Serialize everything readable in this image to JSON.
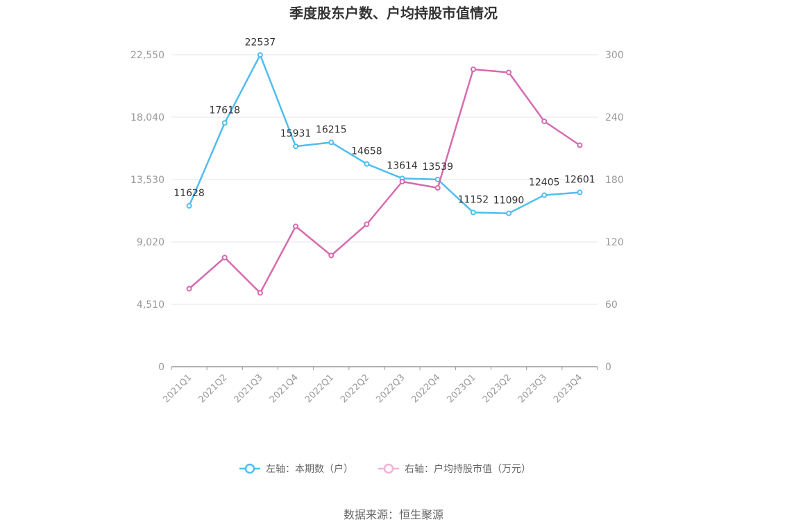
{
  "chart_data": {
    "type": "line",
    "title": "季度股东户数、户均持股市值情况",
    "categories": [
      "2021Q1",
      "2021Q2",
      "2021Q3",
      "2021Q4",
      "2022Q1",
      "2022Q2",
      "2022Q3",
      "2022Q4",
      "2023Q1",
      "2023Q2",
      "2023Q3",
      "2023Q4"
    ],
    "left_axis": {
      "ticks": [
        "0",
        "4,510",
        "9,020",
        "13,530",
        "18,040",
        "22,550"
      ],
      "range": [
        0,
        22550
      ]
    },
    "right_axis": {
      "ticks": [
        "0",
        "60",
        "120",
        "180",
        "240",
        "300"
      ],
      "range": [
        0,
        300
      ]
    },
    "series": [
      {
        "name": "左轴：本期数（户）",
        "axis": "left",
        "color": "#4fbdee",
        "values": [
          11628,
          17618,
          22537,
          15931,
          16215,
          14658,
          13614,
          13539,
          11152,
          11090,
          12405,
          12601
        ],
        "labels": [
          "11628",
          "17618",
          "22537",
          "15931",
          "16215",
          "14658",
          "13614",
          "13539",
          "11152",
          "11090",
          "12405",
          "12601"
        ]
      },
      {
        "name": "右轴：户均持股市值（万元）",
        "axis": "right",
        "color": "#d66aaf",
        "values": [
          75,
          105,
          71,
          135,
          107,
          137,
          178,
          172,
          286,
          283,
          236,
          213
        ]
      }
    ],
    "grid": true,
    "legend_position": "bottom"
  },
  "source": "数据来源：恒生聚源"
}
